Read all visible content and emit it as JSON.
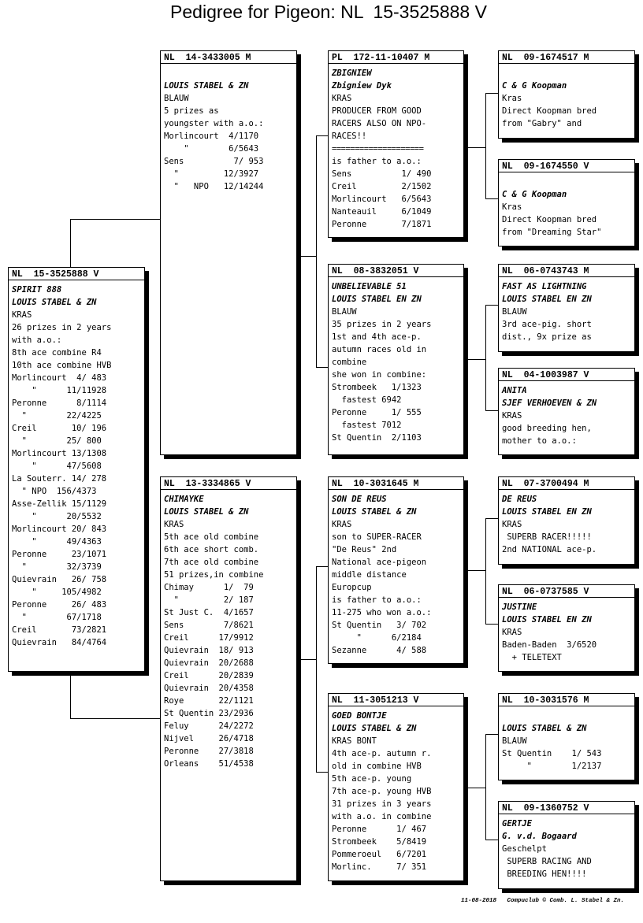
{
  "title": "Pedigree for Pigeon: NL  15-3525888 V",
  "footer": "11-08-2018   Compuclub © Comb. L. Stabel & Zn.",
  "pigeons": {
    "subject": {
      "ring": "NL  15-3525888 V",
      "lines": [
        {
          "t": "SPIRIT 888",
          "s": "it"
        },
        {
          "t": "LOUIS STABEL & ZN",
          "s": "it"
        },
        {
          "t": "KRAS"
        },
        {
          "t": "26 prizes in 2 years"
        },
        {
          "t": "with a.o.:"
        },
        {
          "t": "8th ace combine R4"
        },
        {
          "t": "10th ace combine HVB"
        },
        {
          "t": "Morlincourt  4/ 483"
        },
        {
          "t": "    \"      11/11928"
        },
        {
          "t": "Peronne      8/1114"
        },
        {
          "t": "  \"        22/4225"
        },
        {
          "t": "Creil       10/ 196"
        },
        {
          "t": "  \"        25/ 800"
        },
        {
          "t": "Morlincourt 13/1308"
        },
        {
          "t": "    \"      47/5608"
        },
        {
          "t": "La Souterr. 14/ 278"
        },
        {
          "t": "  \" NPO  156/4373"
        },
        {
          "t": "Asse-Zellik 15/1129"
        },
        {
          "t": "    \"      20/5532"
        },
        {
          "t": "Morlincourt 20/ 843"
        },
        {
          "t": "    \"      49/4363"
        },
        {
          "t": "Peronne     23/1071"
        },
        {
          "t": "  \"        32/3739"
        },
        {
          "t": "Quievrain   26/ 758"
        },
        {
          "t": "    \"     105/4982"
        },
        {
          "t": "Peronne     26/ 483"
        },
        {
          "t": "  \"        67/1718"
        },
        {
          "t": "Creil       73/2821"
        },
        {
          "t": "Quievrain   84/4764"
        }
      ]
    },
    "sire": {
      "ring": "NL  14-3433005 M",
      "lines": [
        {
          "t": ""
        },
        {
          "t": "LOUIS STABEL & ZN",
          "s": "it"
        },
        {
          "t": "BLAUW"
        },
        {
          "t": "5 prizes as"
        },
        {
          "t": "youngster with a.o.:"
        },
        {
          "t": "Morlincourt  4/1170"
        },
        {
          "t": "    \"        6/5643"
        },
        {
          "t": "Sens          7/ 953"
        },
        {
          "t": "  \"         12/3927"
        },
        {
          "t": "  \"   NPO   12/14244"
        }
      ]
    },
    "dam": {
      "ring": "NL  13-3334865 V",
      "lines": [
        {
          "t": "CHIMAYKE",
          "s": "it"
        },
        {
          "t": "LOUIS STABEL & ZN",
          "s": "it"
        },
        {
          "t": "KRAS"
        },
        {
          "t": "5th ace old combine"
        },
        {
          "t": "6th ace short comb."
        },
        {
          "t": "7th ace old combine"
        },
        {
          "t": "51 prizes,in combine"
        },
        {
          "t": "Chimay      1/  79"
        },
        {
          "t": "  \"         2/ 187"
        },
        {
          "t": "St Just C.  4/1657"
        },
        {
          "t": "Sens        7/8621"
        },
        {
          "t": "Creil      17/9912"
        },
        {
          "t": "Quievrain  18/ 913"
        },
        {
          "t": "Quievrain  20/2688"
        },
        {
          "t": "Creil      20/2839"
        },
        {
          "t": "Quievrain  20/4358"
        },
        {
          "t": "Roye       22/1121"
        },
        {
          "t": "St Quentin 23/2936"
        },
        {
          "t": "Feluy      24/2272"
        },
        {
          "t": "Nijvel     26/4718"
        },
        {
          "t": "Peronne    27/3818"
        },
        {
          "t": "Orleans    51/4538"
        }
      ]
    },
    "ss": {
      "ring": "PL  172-11-10407 M",
      "lines": [
        {
          "t": "ZBIGNIEW",
          "s": "it"
        },
        {
          "t": "Zbigniew Dyk",
          "s": "it"
        },
        {
          "t": "KRAS"
        },
        {
          "t": "PRODUCER FROM GOOD"
        },
        {
          "t": "RACERS ALSO ON NPO-"
        },
        {
          "t": "RACES!!"
        },
        {
          "t": "====================",
          "s": "eq"
        },
        {
          "t": "is father to a.o.:"
        },
        {
          "t": "Sens          1/ 490"
        },
        {
          "t": "Creil         2/1502"
        },
        {
          "t": "Morlincourt   6/5643"
        },
        {
          "t": "Nanteauil     6/1049"
        },
        {
          "t": "Peronne       7/1871"
        }
      ]
    },
    "sd": {
      "ring": "NL  08-3832051 V",
      "lines": [
        {
          "t": "UNBELIEVABLE 51",
          "s": "it"
        },
        {
          "t": "LOUIS STABEL EN ZN",
          "s": "it"
        },
        {
          "t": "BLAUW"
        },
        {
          "t": "35 prizes in 2 years"
        },
        {
          "t": "1st and 4th ace-p."
        },
        {
          "t": "autumn races old in"
        },
        {
          "t": "combine"
        },
        {
          "t": "she won in combine:"
        },
        {
          "t": "Strombeek   1/1323"
        },
        {
          "t": "  fastest 6942"
        },
        {
          "t": "Peronne     1/ 555"
        },
        {
          "t": "  fastest 7012"
        },
        {
          "t": "St Quentin  2/1103"
        }
      ]
    },
    "ds": {
      "ring": "NL  10-3031645 M",
      "lines": [
        {
          "t": "SON DE REUS",
          "s": "it"
        },
        {
          "t": "LOUIS STABEL & ZN",
          "s": "it"
        },
        {
          "t": "KRAS"
        },
        {
          "t": "son to SUPER-RACER"
        },
        {
          "t": "\"De Reus\" 2nd"
        },
        {
          "t": "National ace-pigeon"
        },
        {
          "t": "middle distance"
        },
        {
          "t": "Europcup"
        },
        {
          "t": "is father to a.o.:"
        },
        {
          "t": "11-275 who won a.o.:"
        },
        {
          "t": "St Quentin   3/ 702"
        },
        {
          "t": "     \"      6/2184"
        },
        {
          "t": "Sezanne      4/ 588"
        }
      ]
    },
    "dd": {
      "ring": "NL  11-3051213 V",
      "lines": [
        {
          "t": "GOED BONTJE",
          "s": "it"
        },
        {
          "t": "LOUIS STABEL & ZN",
          "s": "it"
        },
        {
          "t": "KRAS BONT"
        },
        {
          "t": "4th ace-p. autumn r."
        },
        {
          "t": "old in combine HVB"
        },
        {
          "t": "5th ace-p. young"
        },
        {
          "t": "7th ace-p. young HVB"
        },
        {
          "t": "31 prizes in 3 years"
        },
        {
          "t": "with a.o. in combine"
        },
        {
          "t": "Peronne      1/ 467"
        },
        {
          "t": "Strombeek    5/8419"
        },
        {
          "t": "Pommeroeul   6/7201"
        },
        {
          "t": "Morlinc.     7/ 351"
        }
      ]
    },
    "sss": {
      "ring": "NL  09-1674517 M",
      "lines": [
        {
          "t": ""
        },
        {
          "t": "C & G Koopman",
          "s": "it"
        },
        {
          "t": "Kras"
        },
        {
          "t": "Direct Koopman bred"
        },
        {
          "t": "from \"Gabry\" and"
        }
      ]
    },
    "ssd": {
      "ring": "NL  09-1674550 V",
      "lines": [
        {
          "t": ""
        },
        {
          "t": "C & G Koopman",
          "s": "it"
        },
        {
          "t": "Kras"
        },
        {
          "t": "Direct Koopman bred"
        },
        {
          "t": "from \"Dreaming Star\""
        }
      ]
    },
    "sds": {
      "ring": "NL  06-0743743 M",
      "lines": [
        {
          "t": "FAST AS LIGHTNING",
          "s": "it"
        },
        {
          "t": "LOUIS STABEL EN ZN",
          "s": "it"
        },
        {
          "t": "BLAUW"
        },
        {
          "t": "3rd ace-pig. short"
        },
        {
          "t": "dist., 9x prize as"
        }
      ]
    },
    "sdd": {
      "ring": "NL  04-1003987 V",
      "lines": [
        {
          "t": "ANITA",
          "s": "it"
        },
        {
          "t": "SJEF VERHOEVEN & ZN",
          "s": "it"
        },
        {
          "t": "KRAS"
        },
        {
          "t": "good breeding hen,"
        },
        {
          "t": "mother to a.o.:"
        }
      ]
    },
    "dss": {
      "ring": "NL  07-3700494 M",
      "lines": [
        {
          "t": "DE REUS",
          "s": "it"
        },
        {
          "t": "LOUIS STABEL EN ZN",
          "s": "it"
        },
        {
          "t": "KRAS"
        },
        {
          "t": " SUPERB RACER!!!!!"
        },
        {
          "t": "2nd NATIONAL ace-p."
        }
      ]
    },
    "dsd": {
      "ring": "NL  06-0737585 V",
      "lines": [
        {
          "t": "JUSTINE",
          "s": "it"
        },
        {
          "t": "LOUIS STABEL EN ZN",
          "s": "it"
        },
        {
          "t": "KRAS"
        },
        {
          "t": "Baden-Baden  3/6520"
        },
        {
          "t": "  + TELETEXT"
        }
      ]
    },
    "dds": {
      "ring": "NL  10-3031576 M",
      "lines": [
        {
          "t": ""
        },
        {
          "t": "LOUIS STABEL & ZN",
          "s": "it"
        },
        {
          "t": "BLAUW"
        },
        {
          "t": "St Quentin    1/ 543"
        },
        {
          "t": "     \"        1/2137"
        }
      ]
    },
    "ddd": {
      "ring": "NL  09-1360752 V",
      "lines": [
        {
          "t": "GERTJE",
          "s": "it"
        },
        {
          "t": "G. v.d. Bogaard",
          "s": "it"
        },
        {
          "t": "Geschelpt"
        },
        {
          "t": " SUPERB RACING AND"
        },
        {
          "t": " BREEDING HEN!!!!"
        }
      ]
    }
  }
}
